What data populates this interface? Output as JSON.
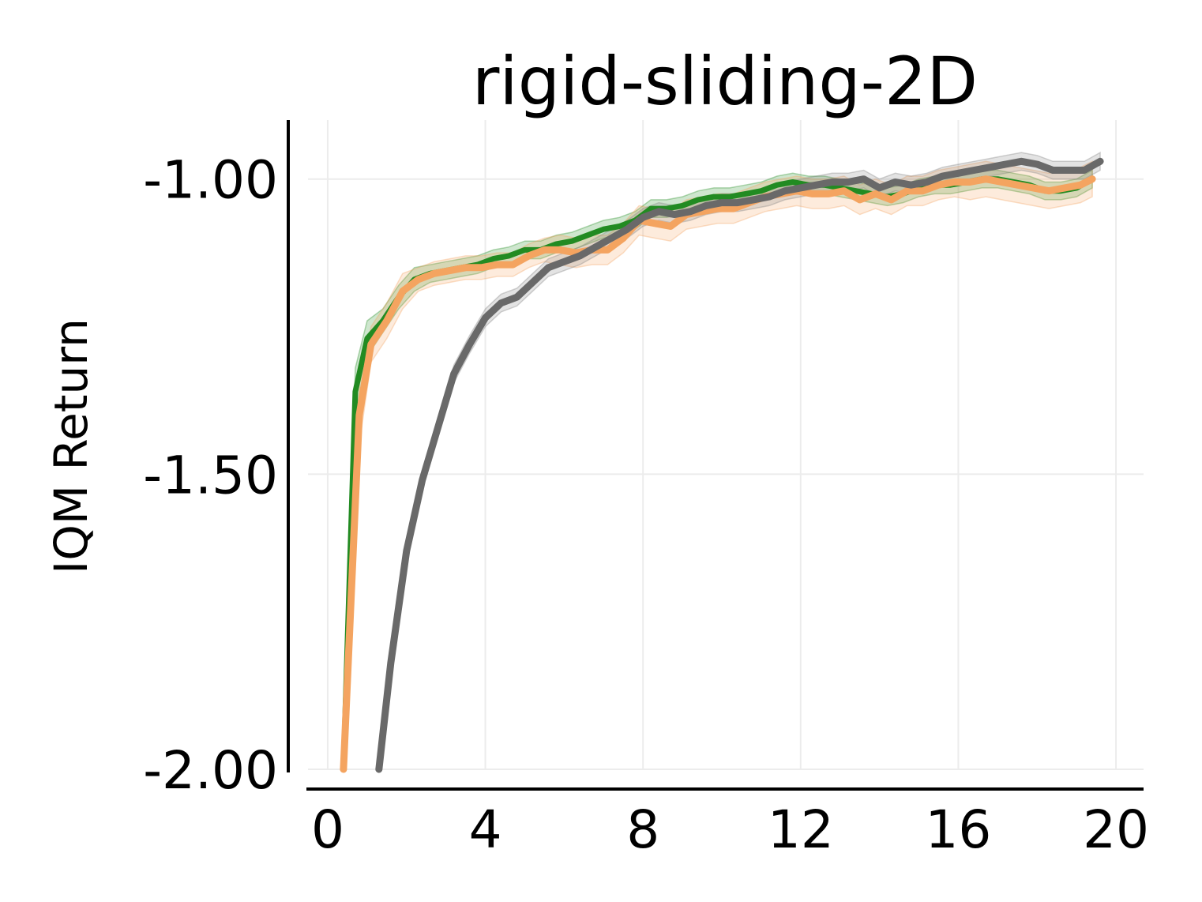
{
  "chart_data": {
    "type": "line",
    "title": "rigid-sliding-2D",
    "xlabel": "",
    "ylabel": "IQM Return",
    "xlim": [
      -0.5,
      20.7
    ],
    "ylim": [
      -2.0,
      -0.9
    ],
    "grid": true,
    "xticks": [
      0,
      4,
      8,
      12,
      16,
      20
    ],
    "xtick_labels": [
      "0",
      "4",
      "8",
      "12",
      "16",
      "20"
    ],
    "yticks": [
      -2.0,
      -1.5,
      -1.0
    ],
    "ytick_labels": [
      "-2.00",
      "-1.50",
      "-1.00"
    ],
    "series": [
      {
        "color": "#228b22",
        "band_color": "#228b22",
        "x": [
          0.4,
          0.7,
          1.0,
          1.4,
          1.8,
          2.2,
          2.6,
          3.0,
          3.4,
          3.8,
          4.2,
          4.6,
          5.0,
          5.4,
          5.8,
          6.2,
          6.6,
          7.0,
          7.4,
          7.8,
          8.2,
          8.6,
          9.0,
          9.4,
          9.8,
          10.2,
          10.6,
          11.0,
          11.4,
          11.8,
          12.2,
          12.6,
          13.0,
          13.4,
          13.8,
          14.2,
          14.6,
          15.0,
          15.4,
          15.8,
          16.2,
          16.6,
          17.0,
          17.4,
          17.8,
          18.2,
          18.6,
          19.0,
          19.4
        ],
        "y": [
          -2.0,
          -1.36,
          -1.27,
          -1.24,
          -1.2,
          -1.17,
          -1.16,
          -1.155,
          -1.15,
          -1.145,
          -1.135,
          -1.13,
          -1.12,
          -1.12,
          -1.11,
          -1.105,
          -1.095,
          -1.085,
          -1.08,
          -1.07,
          -1.05,
          -1.05,
          -1.045,
          -1.035,
          -1.03,
          -1.03,
          -1.025,
          -1.02,
          -1.01,
          -1.005,
          -1.01,
          -1.01,
          -1.015,
          -1.02,
          -1.025,
          -1.03,
          -1.025,
          -1.015,
          -1.01,
          -1.01,
          -1.005,
          -1.0,
          -1.0,
          -1.005,
          -1.01,
          -1.02,
          -1.02,
          -1.015,
          -1.0
        ],
        "lower": [
          -2.0,
          -1.4,
          -1.3,
          -1.26,
          -1.22,
          -1.19,
          -1.175,
          -1.17,
          -1.165,
          -1.16,
          -1.15,
          -1.145,
          -1.135,
          -1.135,
          -1.125,
          -1.12,
          -1.11,
          -1.1,
          -1.095,
          -1.085,
          -1.065,
          -1.065,
          -1.06,
          -1.05,
          -1.045,
          -1.045,
          -1.04,
          -1.035,
          -1.025,
          -1.02,
          -1.025,
          -1.025,
          -1.03,
          -1.035,
          -1.04,
          -1.045,
          -1.04,
          -1.03,
          -1.025,
          -1.025,
          -1.02,
          -1.015,
          -1.015,
          -1.02,
          -1.025,
          -1.035,
          -1.035,
          -1.03,
          -1.015
        ],
        "upper": [
          -2.0,
          -1.32,
          -1.24,
          -1.22,
          -1.18,
          -1.15,
          -1.145,
          -1.14,
          -1.135,
          -1.13,
          -1.12,
          -1.115,
          -1.105,
          -1.105,
          -1.095,
          -1.09,
          -1.08,
          -1.07,
          -1.065,
          -1.055,
          -1.035,
          -1.035,
          -1.03,
          -1.02,
          -1.015,
          -1.015,
          -1.01,
          -1.005,
          -0.995,
          -0.99,
          -0.995,
          -0.995,
          -1.0,
          -1.005,
          -1.01,
          -1.015,
          -1.01,
          -1.0,
          -0.995,
          -0.995,
          -0.99,
          -0.985,
          -0.985,
          -0.99,
          -0.995,
          -1.005,
          -1.005,
          -1.0,
          -0.985
        ]
      },
      {
        "color": "#f4a460",
        "band_color": "#f4a460",
        "x": [
          0.4,
          0.8,
          1.1,
          1.5,
          1.9,
          2.3,
          2.7,
          3.1,
          3.5,
          3.9,
          4.3,
          4.7,
          5.1,
          5.5,
          5.9,
          6.3,
          6.7,
          7.1,
          7.5,
          7.9,
          8.3,
          8.7,
          9.1,
          9.5,
          9.9,
          10.3,
          10.7,
          11.1,
          11.5,
          11.9,
          12.3,
          12.7,
          13.1,
          13.5,
          13.9,
          14.3,
          14.7,
          15.1,
          15.5,
          15.9,
          16.3,
          16.7,
          17.1,
          17.5,
          17.9,
          18.3,
          18.7,
          19.1,
          19.4
        ],
        "y": [
          -2.0,
          -1.4,
          -1.28,
          -1.24,
          -1.19,
          -1.17,
          -1.16,
          -1.155,
          -1.15,
          -1.15,
          -1.145,
          -1.145,
          -1.13,
          -1.12,
          -1.12,
          -1.125,
          -1.12,
          -1.12,
          -1.1,
          -1.07,
          -1.075,
          -1.08,
          -1.06,
          -1.055,
          -1.05,
          -1.05,
          -1.04,
          -1.03,
          -1.025,
          -1.02,
          -1.025,
          -1.025,
          -1.02,
          -1.035,
          -1.025,
          -1.035,
          -1.02,
          -1.02,
          -1.01,
          -1.005,
          -1.005,
          -1.0,
          -1.005,
          -1.01,
          -1.015,
          -1.02,
          -1.015,
          -1.01,
          -1.0
        ],
        "lower": [
          -2.0,
          -1.45,
          -1.31,
          -1.27,
          -1.22,
          -1.19,
          -1.18,
          -1.175,
          -1.17,
          -1.17,
          -1.165,
          -1.165,
          -1.15,
          -1.14,
          -1.145,
          -1.15,
          -1.145,
          -1.145,
          -1.125,
          -1.095,
          -1.1,
          -1.105,
          -1.085,
          -1.08,
          -1.075,
          -1.075,
          -1.065,
          -1.055,
          -1.05,
          -1.045,
          -1.05,
          -1.05,
          -1.045,
          -1.06,
          -1.05,
          -1.06,
          -1.045,
          -1.045,
          -1.035,
          -1.03,
          -1.035,
          -1.03,
          -1.035,
          -1.04,
          -1.045,
          -1.05,
          -1.045,
          -1.04,
          -1.03
        ],
        "upper": [
          -2.0,
          -1.35,
          -1.25,
          -1.21,
          -1.16,
          -1.15,
          -1.14,
          -1.135,
          -1.13,
          -1.13,
          -1.125,
          -1.125,
          -1.11,
          -1.1,
          -1.095,
          -1.1,
          -1.095,
          -1.095,
          -1.075,
          -1.045,
          -1.05,
          -1.055,
          -1.035,
          -1.03,
          -1.025,
          -1.025,
          -1.015,
          -1.005,
          -1.0,
          -0.995,
          -1.0,
          -1.0,
          -0.995,
          -1.01,
          -1.0,
          -1.01,
          -0.995,
          -0.995,
          -0.985,
          -0.98,
          -0.975,
          -0.97,
          -0.975,
          -0.98,
          -0.985,
          -0.99,
          -0.985,
          -0.98,
          -0.97
        ]
      },
      {
        "color": "#696969",
        "band_color": "#808080",
        "x": [
          1.3,
          1.6,
          2.0,
          2.4,
          2.8,
          3.2,
          3.6,
          4.0,
          4.4,
          4.8,
          5.2,
          5.6,
          6.0,
          6.4,
          6.8,
          7.2,
          7.6,
          8.0,
          8.4,
          8.8,
          9.2,
          9.6,
          10.0,
          10.4,
          10.8,
          11.2,
          11.6,
          12.0,
          12.4,
          12.8,
          13.2,
          13.6,
          14.0,
          14.4,
          14.8,
          15.2,
          15.6,
          16.0,
          16.4,
          16.8,
          17.2,
          17.6,
          18.0,
          18.4,
          18.8,
          19.2,
          19.6
        ],
        "y": [
          -2.0,
          -1.82,
          -1.63,
          -1.51,
          -1.42,
          -1.33,
          -1.28,
          -1.235,
          -1.21,
          -1.2,
          -1.175,
          -1.15,
          -1.14,
          -1.13,
          -1.115,
          -1.1,
          -1.085,
          -1.065,
          -1.055,
          -1.06,
          -1.055,
          -1.045,
          -1.04,
          -1.04,
          -1.035,
          -1.03,
          -1.02,
          -1.015,
          -1.01,
          -1.005,
          -1.005,
          -1.0,
          -1.015,
          -1.005,
          -1.01,
          -1.005,
          -0.995,
          -0.99,
          -0.985,
          -0.98,
          -0.975,
          -0.97,
          -0.975,
          -0.985,
          -0.985,
          -0.985,
          -0.97
        ],
        "lower": [
          -2.0,
          -1.83,
          -1.64,
          -1.52,
          -1.43,
          -1.345,
          -1.295,
          -1.25,
          -1.225,
          -1.215,
          -1.19,
          -1.165,
          -1.155,
          -1.145,
          -1.13,
          -1.115,
          -1.1,
          -1.08,
          -1.07,
          -1.075,
          -1.07,
          -1.06,
          -1.055,
          -1.055,
          -1.05,
          -1.045,
          -1.035,
          -1.03,
          -1.025,
          -1.02,
          -1.02,
          -1.015,
          -1.03,
          -1.02,
          -1.025,
          -1.02,
          -1.01,
          -1.005,
          -1.0,
          -0.995,
          -0.99,
          -0.985,
          -0.99,
          -1.0,
          -1.0,
          -1.0,
          -0.985
        ],
        "upper": [
          -2.0,
          -1.81,
          -1.62,
          -1.5,
          -1.41,
          -1.315,
          -1.265,
          -1.22,
          -1.195,
          -1.185,
          -1.16,
          -1.135,
          -1.125,
          -1.115,
          -1.1,
          -1.085,
          -1.07,
          -1.05,
          -1.04,
          -1.045,
          -1.04,
          -1.03,
          -1.025,
          -1.025,
          -1.02,
          -1.015,
          -1.005,
          -1.0,
          -0.995,
          -0.99,
          -0.99,
          -0.985,
          -1.0,
          -0.99,
          -0.995,
          -0.99,
          -0.98,
          -0.975,
          -0.97,
          -0.965,
          -0.96,
          -0.955,
          -0.96,
          -0.97,
          -0.97,
          -0.97,
          -0.955
        ]
      }
    ]
  }
}
